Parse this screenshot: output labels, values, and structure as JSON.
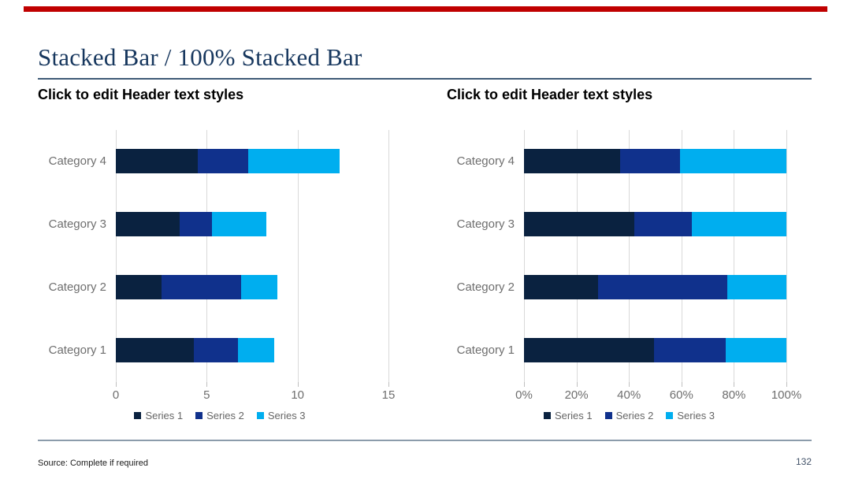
{
  "slide": {
    "title": "Stacked Bar / 100% Stacked Bar",
    "accent_color": "#C00000",
    "source_note": "Source: Complete if required",
    "page_number": "132"
  },
  "chart_data": [
    {
      "type": "bar",
      "variant": "horizontal-stacked",
      "header": "Click to edit Header text styles",
      "categories": [
        "Category 1",
        "Category 2",
        "Category 3",
        "Category 4"
      ],
      "series": [
        {
          "name": "Series 1",
          "color": "#0A2240",
          "values": [
            4.3,
            2.5,
            3.5,
            4.5
          ]
        },
        {
          "name": "Series 2",
          "color": "#10318C",
          "values": [
            2.4,
            4.4,
            1.8,
            2.8
          ]
        },
        {
          "name": "Series 3",
          "color": "#00AEEF",
          "values": [
            2.0,
            2.0,
            3.0,
            5.0
          ]
        }
      ],
      "x_ticks": [
        "0",
        "5",
        "10",
        "15"
      ],
      "xlim": [
        0,
        15
      ],
      "normalized": false,
      "grid": "vertical",
      "legend_position": "bottom"
    },
    {
      "type": "bar",
      "variant": "horizontal-100%-stacked",
      "header": "Click to edit Header text styles",
      "categories": [
        "Category 1",
        "Category 2",
        "Category 3",
        "Category 4"
      ],
      "series": [
        {
          "name": "Series 1",
          "color": "#0A2240",
          "values": [
            4.3,
            2.5,
            3.5,
            4.5
          ]
        },
        {
          "name": "Series 2",
          "color": "#10318C",
          "values": [
            2.4,
            4.4,
            1.8,
            2.8
          ]
        },
        {
          "name": "Series 3",
          "color": "#00AEEF",
          "values": [
            2.0,
            2.0,
            3.0,
            5.0
          ]
        }
      ],
      "x_ticks": [
        "0%",
        "20%",
        "40%",
        "60%",
        "80%",
        "100%"
      ],
      "xlim": [
        0,
        100
      ],
      "normalized": true,
      "grid": "vertical",
      "legend_position": "bottom"
    }
  ]
}
